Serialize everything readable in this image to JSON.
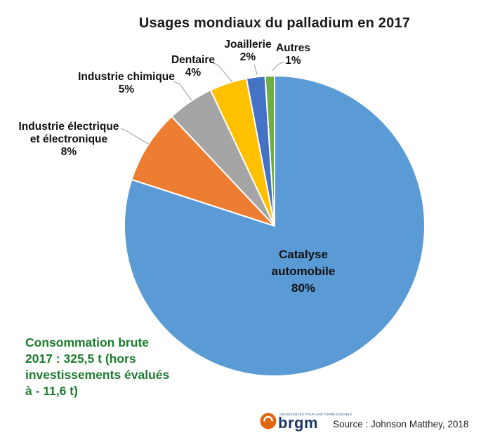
{
  "chart_data": {
    "type": "pie",
    "title": "Usages mondiaux du palladium en 2017",
    "direction": "clockwise",
    "start_angle_deg": 0,
    "legend": "none",
    "slices": [
      {
        "label": "Catalyse automobile",
        "pct": 80,
        "pct_label": "80%",
        "color": "#5B9BD5"
      },
      {
        "label": "Industrie électrique et électronique",
        "pct": 8,
        "pct_label": "8%",
        "color": "#ED7D31"
      },
      {
        "label": "Industrie chimique",
        "pct": 5,
        "pct_label": "5%",
        "color": "#A5A5A5"
      },
      {
        "label": "Dentaire",
        "pct": 4,
        "pct_label": "4%",
        "color": "#FFC000"
      },
      {
        "label": "Joaillerie",
        "pct": 2,
        "pct_label": "2%",
        "color": "#4472C4"
      },
      {
        "label": "Autres",
        "pct": 1,
        "pct_label": "1%",
        "color": "#70AD47"
      }
    ],
    "slice_border_color": "#FFFFFF",
    "leader_line_color": "#A6A6A6"
  },
  "annotation": {
    "color": "#1E7B2E",
    "lines": [
      "Consommation brute",
      "2017 : 325,5 t (hors",
      "investissements évalués",
      "à - 11,6 t)"
    ]
  },
  "footer": {
    "source": "Source : Johnson Matthey, 2018",
    "logo_text": "brgm",
    "logo_tagline": "GÉOSCIENCES POUR UNE TERRE DURABLE",
    "logo_orange": "#E0660F",
    "logo_navy": "#1C3664"
  }
}
